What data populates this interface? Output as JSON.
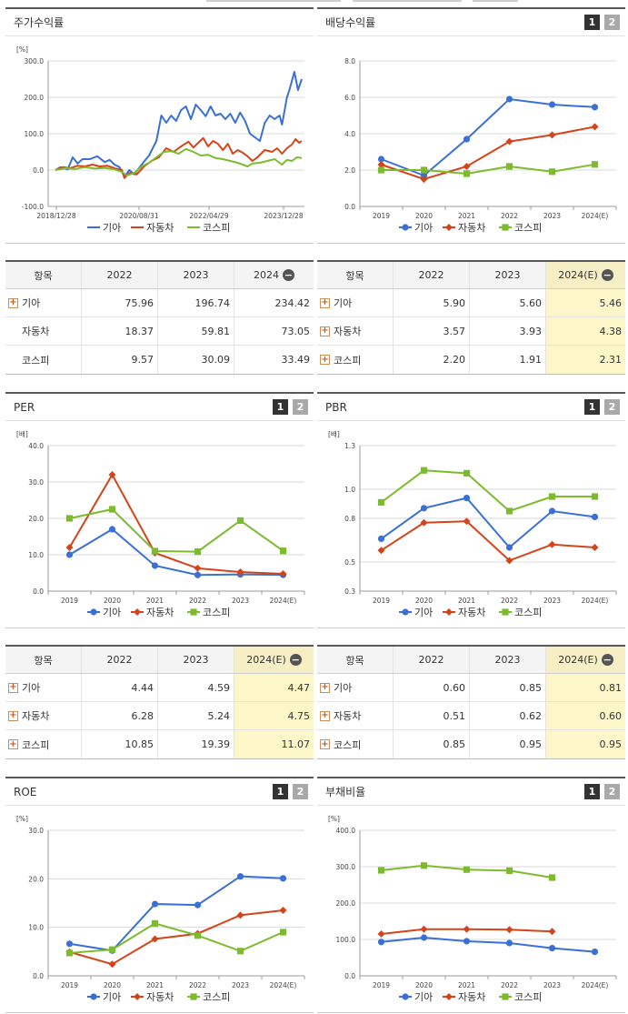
{
  "legend": [
    "기아",
    "자동차",
    "코스피"
  ],
  "colors": {
    "kia": "#3a70d6",
    "auto": "#d4431a",
    "kospi": "#7dbb2e"
  },
  "page_buttons": [
    "1",
    "2"
  ],
  "charts": [
    {
      "title": "주가수익률",
      "unit": "[%]",
      "yticks": [
        "300.0",
        "200.0",
        "100.0",
        "0.0",
        "-100.0"
      ],
      "has_pages": false
    },
    {
      "title": "배당수익률",
      "unit": "",
      "yticks": [
        "8.0",
        "6.0",
        "4.0",
        "2.0",
        "0.0"
      ],
      "xticks": [
        "2019",
        "2020",
        "2021",
        "2022",
        "2023",
        "2024(E)"
      ],
      "has_pages": true
    },
    {
      "title": "PER",
      "unit": "[배]",
      "yticks": [
        "40.0",
        "30.0",
        "20.0",
        "10.0",
        "0.0"
      ],
      "xticks": [
        "2019",
        "2020",
        "2021",
        "2022",
        "2023",
        "2024(E)"
      ],
      "has_pages": true
    },
    {
      "title": "PBR",
      "unit": "[배]",
      "yticks": [
        "1.3",
        "1.0",
        "0.8",
        "0.5",
        "0.3"
      ],
      "xticks": [
        "2019",
        "2020",
        "2021",
        "2022",
        "2023",
        "2024(E)"
      ],
      "has_pages": true
    },
    {
      "title": "ROE",
      "unit": "[%]",
      "yticks": [
        "30.0",
        "20.0",
        "10.0",
        "0.0"
      ],
      "xticks": [
        "2019",
        "2020",
        "2021",
        "2022",
        "2023",
        "2024(E)"
      ],
      "has_pages": true
    },
    {
      "title": "부채비율",
      "unit": "[%]",
      "yticks": [
        "400.0",
        "300.0",
        "200.0",
        "100.0",
        "0.0"
      ],
      "xticks": [
        "2019",
        "2020",
        "2021",
        "2022",
        "2023",
        "2024(E)"
      ],
      "has_pages": true
    }
  ],
  "tables": [
    {
      "headers": [
        "항목",
        "2022",
        "2023",
        "2024"
      ],
      "estimate_col": false,
      "rows": [
        [
          "기아",
          "75.96",
          "196.74",
          "234.42"
        ],
        [
          "자동차",
          "18.37",
          "59.81",
          "73.05"
        ],
        [
          "코스피",
          "9.57",
          "30.09",
          "33.49"
        ]
      ],
      "expand": [
        true,
        false,
        false
      ]
    },
    {
      "headers": [
        "항목",
        "2022",
        "2023",
        "2024(E)"
      ],
      "estimate_col": true,
      "rows": [
        [
          "기아",
          "5.90",
          "5.60",
          "5.46"
        ],
        [
          "자동차",
          "3.57",
          "3.93",
          "4.38"
        ],
        [
          "코스피",
          "2.20",
          "1.91",
          "2.31"
        ]
      ],
      "expand": [
        true,
        true,
        true
      ]
    },
    {
      "headers": [
        "항목",
        "2022",
        "2023",
        "2024(E)"
      ],
      "estimate_col": true,
      "rows": [
        [
          "기아",
          "4.44",
          "4.59",
          "4.47"
        ],
        [
          "자동차",
          "6.28",
          "5.24",
          "4.75"
        ],
        [
          "코스피",
          "10.85",
          "19.39",
          "11.07"
        ]
      ],
      "expand": [
        true,
        true,
        true
      ]
    },
    {
      "headers": [
        "항목",
        "2022",
        "2023",
        "2024(E)"
      ],
      "estimate_col": true,
      "rows": [
        [
          "기아",
          "0.60",
          "0.85",
          "0.81"
        ],
        [
          "자동차",
          "0.51",
          "0.62",
          "0.60"
        ],
        [
          "코스피",
          "0.85",
          "0.95",
          "0.95"
        ]
      ],
      "expand": [
        true,
        true,
        true
      ]
    }
  ],
  "chart_data": [
    {
      "type": "line",
      "title": "주가수익률",
      "ylabel": "[%]",
      "ylim": [
        -100,
        300
      ],
      "x_ticks": [
        "2018/12/28",
        "2020/08/31",
        "2022/04/29",
        "2023/12/28"
      ],
      "series": [
        {
          "name": "기아",
          "points": [
            [
              0,
              0
            ],
            [
              0.02,
              8
            ],
            [
              0.05,
              2
            ],
            [
              0.07,
              35
            ],
            [
              0.09,
              18
            ],
            [
              0.11,
              30
            ],
            [
              0.14,
              30
            ],
            [
              0.17,
              38
            ],
            [
              0.2,
              22
            ],
            [
              0.22,
              28
            ],
            [
              0.24,
              15
            ],
            [
              0.26,
              8
            ],
            [
              0.28,
              -18
            ],
            [
              0.3,
              0
            ],
            [
              0.32,
              -12
            ],
            [
              0.35,
              15
            ],
            [
              0.38,
              40
            ],
            [
              0.41,
              80
            ],
            [
              0.43,
              150
            ],
            [
              0.45,
              130
            ],
            [
              0.47,
              150
            ],
            [
              0.49,
              135
            ],
            [
              0.51,
              165
            ],
            [
              0.53,
              175
            ],
            [
              0.55,
              140
            ],
            [
              0.57,
              180
            ],
            [
              0.59,
              165
            ],
            [
              0.61,
              148
            ],
            [
              0.63,
              175
            ],
            [
              0.65,
              150
            ],
            [
              0.67,
              155
            ],
            [
              0.69,
              140
            ],
            [
              0.71,
              155
            ],
            [
              0.73,
              130
            ],
            [
              0.75,
              158
            ],
            [
              0.77,
              135
            ],
            [
              0.79,
              100
            ],
            [
              0.81,
              90
            ],
            [
              0.83,
              80
            ],
            [
              0.85,
              130
            ],
            [
              0.87,
              150
            ],
            [
              0.89,
              140
            ],
            [
              0.91,
              150
            ],
            [
              0.92,
              125
            ],
            [
              0.94,
              200
            ],
            [
              0.95,
              220
            ],
            [
              0.97,
              270
            ],
            [
              0.985,
              220
            ],
            [
              1.0,
              250
            ]
          ]
        },
        {
          "name": "자동차",
          "points": [
            [
              0,
              0
            ],
            [
              0.03,
              8
            ],
            [
              0.06,
              5
            ],
            [
              0.09,
              12
            ],
            [
              0.12,
              10
            ],
            [
              0.15,
              15
            ],
            [
              0.18,
              10
            ],
            [
              0.21,
              12
            ],
            [
              0.24,
              5
            ],
            [
              0.27,
              0
            ],
            [
              0.28,
              -22
            ],
            [
              0.3,
              -8
            ],
            [
              0.33,
              -12
            ],
            [
              0.36,
              10
            ],
            [
              0.39,
              25
            ],
            [
              0.42,
              35
            ],
            [
              0.45,
              60
            ],
            [
              0.48,
              50
            ],
            [
              0.51,
              65
            ],
            [
              0.54,
              78
            ],
            [
              0.56,
              62
            ],
            [
              0.58,
              75
            ],
            [
              0.6,
              88
            ],
            [
              0.62,
              65
            ],
            [
              0.64,
              80
            ],
            [
              0.66,
              72
            ],
            [
              0.68,
              55
            ],
            [
              0.7,
              72
            ],
            [
              0.72,
              45
            ],
            [
              0.74,
              55
            ],
            [
              0.76,
              48
            ],
            [
              0.78,
              38
            ],
            [
              0.8,
              25
            ],
            [
              0.82,
              35
            ],
            [
              0.85,
              55
            ],
            [
              0.88,
              50
            ],
            [
              0.9,
              60
            ],
            [
              0.92,
              45
            ],
            [
              0.94,
              60
            ],
            [
              0.96,
              70
            ],
            [
              0.975,
              85
            ],
            [
              0.99,
              75
            ],
            [
              1.0,
              80
            ]
          ]
        },
        {
          "name": "코스피",
          "points": [
            [
              0,
              0
            ],
            [
              0.04,
              5
            ],
            [
              0.08,
              3
            ],
            [
              0.12,
              8
            ],
            [
              0.16,
              4
            ],
            [
              0.2,
              6
            ],
            [
              0.24,
              2
            ],
            [
              0.27,
              -5
            ],
            [
              0.29,
              -15
            ],
            [
              0.32,
              -8
            ],
            [
              0.35,
              10
            ],
            [
              0.38,
              20
            ],
            [
              0.41,
              35
            ],
            [
              0.44,
              50
            ],
            [
              0.47,
              52
            ],
            [
              0.5,
              45
            ],
            [
              0.53,
              58
            ],
            [
              0.56,
              50
            ],
            [
              0.59,
              40
            ],
            [
              0.62,
              42
            ],
            [
              0.65,
              33
            ],
            [
              0.68,
              30
            ],
            [
              0.71,
              25
            ],
            [
              0.74,
              20
            ],
            [
              0.76,
              15
            ],
            [
              0.78,
              10
            ],
            [
              0.8,
              18
            ],
            [
              0.83,
              20
            ],
            [
              0.86,
              25
            ],
            [
              0.89,
              30
            ],
            [
              0.92,
              15
            ],
            [
              0.94,
              28
            ],
            [
              0.96,
              25
            ],
            [
              0.98,
              35
            ],
            [
              1.0,
              33
            ]
          ]
        }
      ]
    },
    {
      "type": "line",
      "title": "배당수익률",
      "ylim": [
        0,
        8
      ],
      "categories": [
        "2019",
        "2020",
        "2021",
        "2022",
        "2023",
        "2024(E)"
      ],
      "series": [
        {
          "name": "기아",
          "values": [
            2.6,
            1.7,
            3.7,
            5.9,
            5.6,
            5.46
          ]
        },
        {
          "name": "자동차",
          "values": [
            2.3,
            1.5,
            2.2,
            3.57,
            3.93,
            4.38
          ]
        },
        {
          "name": "코스피",
          "values": [
            2.0,
            2.0,
            1.8,
            2.2,
            1.91,
            2.31
          ]
        }
      ]
    },
    {
      "type": "line",
      "title": "PER",
      "ylabel": "[배]",
      "ylim": [
        0,
        40
      ],
      "categories": [
        "2019",
        "2020",
        "2021",
        "2022",
        "2023",
        "2024(E)"
      ],
      "series": [
        {
          "name": "기아",
          "values": [
            10,
            17,
            7,
            4.44,
            4.59,
            4.47
          ]
        },
        {
          "name": "자동차",
          "values": [
            12,
            32,
            10.5,
            6.28,
            5.24,
            4.75
          ]
        },
        {
          "name": "코스피",
          "values": [
            20,
            22.5,
            11,
            10.85,
            19.39,
            11.07
          ]
        }
      ]
    },
    {
      "type": "line",
      "title": "PBR",
      "ylabel": "[배]",
      "ylim": [
        0.3,
        1.3
      ],
      "categories": [
        "2019",
        "2020",
        "2021",
        "2022",
        "2023",
        "2024(E)"
      ],
      "series": [
        {
          "name": "기아",
          "values": [
            0.66,
            0.87,
            0.94,
            0.6,
            0.85,
            0.81
          ]
        },
        {
          "name": "자동차",
          "values": [
            0.58,
            0.77,
            0.78,
            0.51,
            0.62,
            0.6
          ]
        },
        {
          "name": "코스피",
          "values": [
            0.91,
            1.13,
            1.11,
            0.85,
            0.95,
            0.95
          ]
        }
      ]
    },
    {
      "type": "line",
      "title": "ROE",
      "ylabel": "[%]",
      "ylim": [
        0,
        30
      ],
      "categories": [
        "2019",
        "2020",
        "2021",
        "2022",
        "2023",
        "2024(E)"
      ],
      "series": [
        {
          "name": "기아",
          "values": [
            6.6,
            5.2,
            14.8,
            14.6,
            20.5,
            20.1
          ]
        },
        {
          "name": "자동차",
          "values": [
            4.9,
            2.4,
            7.6,
            8.7,
            12.5,
            13.5
          ]
        },
        {
          "name": "코스피",
          "values": [
            4.7,
            5.4,
            10.8,
            8.3,
            5.1,
            9.0
          ]
        }
      ]
    },
    {
      "type": "line",
      "title": "부채비율",
      "ylabel": "[%]",
      "ylim": [
        0,
        400
      ],
      "categories": [
        "2019",
        "2020",
        "2021",
        "2022",
        "2023",
        "2024(E)"
      ],
      "series": [
        {
          "name": "기아",
          "values": [
            93,
            105,
            95,
            90,
            76,
            66
          ]
        },
        {
          "name": "자동차",
          "values": [
            115,
            128,
            128,
            127,
            122,
            null
          ]
        },
        {
          "name": "코스피",
          "values": [
            290,
            303,
            292,
            289,
            270,
            null
          ]
        }
      ]
    }
  ]
}
